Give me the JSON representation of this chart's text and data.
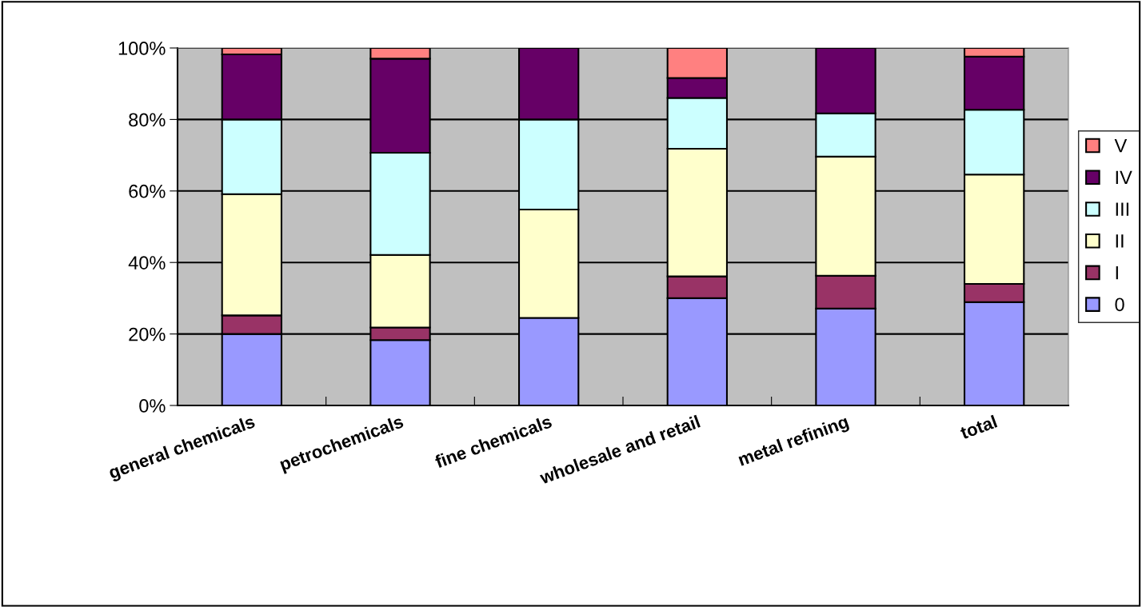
{
  "chart_data": {
    "type": "bar",
    "stacked": true,
    "categories": [
      "general chemicals",
      "petrochemicals",
      "fine chemicals",
      "wholesale and retail",
      "metal refining",
      "total"
    ],
    "series": [
      {
        "name": "0",
        "color": "#9999ff",
        "values": [
          20.0,
          18.3,
          24.5,
          30.0,
          27.1,
          28.9
        ]
      },
      {
        "name": "I",
        "color": "#993366",
        "values": [
          5.2,
          3.5,
          null,
          6.1,
          9.2,
          5.1
        ]
      },
      {
        "name": "II",
        "color": "#ffffcc",
        "values": [
          33.9,
          20.3,
          30.3,
          35.7,
          33.3,
          30.6
        ]
      },
      {
        "name": "III",
        "color": "#ccffff",
        "values": [
          20.9,
          28.6,
          25.2,
          14.2,
          12.1,
          18.1
        ]
      },
      {
        "name": "IV",
        "color": "#660066",
        "values": [
          18.2,
          26.3,
          20.0,
          5.6,
          18.3,
          14.9
        ]
      },
      {
        "name": "V",
        "color": "#ff8080",
        "values": [
          1.8,
          3.0,
          null,
          8.4,
          null,
          2.4
        ]
      }
    ],
    "ylim": [
      0,
      100
    ],
    "yticks": [
      {
        "value": 0,
        "label": "0%"
      },
      {
        "value": 20,
        "label": "20%"
      },
      {
        "value": 40,
        "label": "40%"
      },
      {
        "value": 60,
        "label": "60%"
      },
      {
        "value": 80,
        "label": "80%"
      },
      {
        "value": 100,
        "label": "100%"
      }
    ],
    "grid": "y",
    "legend": "right"
  }
}
